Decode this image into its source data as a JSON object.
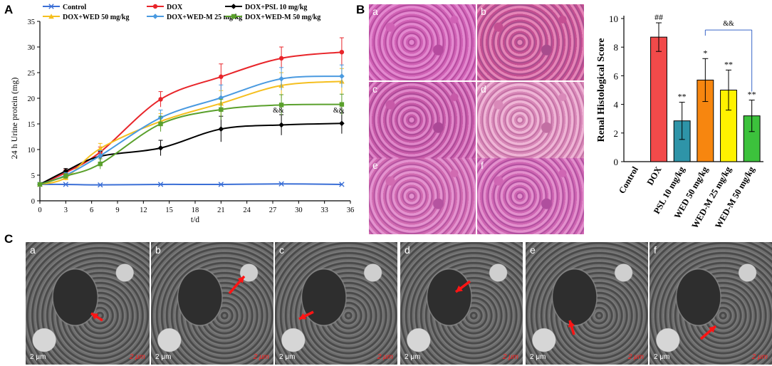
{
  "panels": {
    "a": "A",
    "b": "B",
    "c": "C"
  },
  "chart_data": [
    {
      "type": "line",
      "xlabel": "t/d",
      "ylabel": "24 h Urine protein (mg)",
      "xlim": [
        0,
        36
      ],
      "ylim": [
        0,
        35
      ],
      "xticks": [
        0,
        3,
        6,
        9,
        12,
        15,
        18,
        21,
        24,
        27,
        30,
        33,
        36
      ],
      "yticks": [
        0,
        5,
        10,
        15,
        20,
        25,
        30,
        35
      ],
      "legend_position": "top",
      "x": [
        0,
        3,
        7,
        14,
        21,
        28,
        35
      ],
      "series": [
        {
          "name": "Control",
          "color": "#3b6fd6",
          "marker": "x",
          "values": [
            3.2,
            3.2,
            3.1,
            3.2,
            3.2,
            3.3,
            3.2
          ],
          "errors": [
            0.1,
            0.1,
            0.1,
            0.1,
            0.1,
            0.1,
            0.1
          ]
        },
        {
          "name": "DOX",
          "color": "#e8252a",
          "marker": "circle",
          "values": [
            3.2,
            5.5,
            9.5,
            19.8,
            24.2,
            27.8,
            29.0
          ],
          "errors": [
            0.2,
            0.6,
            1.0,
            1.5,
            2.5,
            2.2,
            2.8
          ]
        },
        {
          "name": "DOX+PSL 10 mg/kg",
          "color": "#000000",
          "marker": "diamond",
          "values": [
            3.2,
            5.8,
            8.7,
            10.3,
            14.0,
            14.8,
            15.1
          ],
          "errors": [
            0.2,
            0.5,
            1.0,
            1.5,
            2.5,
            2.0,
            2.0
          ]
        },
        {
          "name": "DOX+WED 50 mg/kg",
          "color": "#f5bf1f",
          "marker": "triangle",
          "values": [
            3.2,
            4.5,
            10.2,
            15.5,
            19.0,
            22.5,
            23.3
          ],
          "errors": [
            0.2,
            0.5,
            1.0,
            1.5,
            2.5,
            2.5,
            2.5
          ]
        },
        {
          "name": "DOX+WED-M 25 mg/kg",
          "color": "#4a9ae0",
          "marker": "diamond",
          "values": [
            3.2,
            5.0,
            8.8,
            16.2,
            20.1,
            23.8,
            24.3
          ],
          "errors": [
            0.2,
            0.5,
            1.0,
            1.5,
            2.5,
            2.2,
            2.2
          ]
        },
        {
          "name": "DOX+WED-M 50 mg/kg",
          "color": "#5aa02c",
          "marker": "square",
          "values": [
            3.2,
            4.8,
            7.2,
            15.0,
            17.8,
            18.7,
            18.8
          ],
          "errors": [
            0.2,
            0.5,
            1.0,
            1.5,
            2.0,
            2.0,
            2.0
          ]
        }
      ],
      "annotations": [
        {
          "x": 28,
          "y": 17.5,
          "text": "&&"
        },
        {
          "x": 35,
          "y": 17.5,
          "text": "&&"
        }
      ]
    },
    {
      "type": "bar",
      "ylabel": "Renal Histological Score",
      "ylim": [
        0,
        10
      ],
      "yticks": [
        0,
        2,
        4,
        6,
        8,
        10
      ],
      "categories": [
        "Control",
        "DOX",
        "PSL 10 mg/kg",
        "WED 50 mg/kg",
        "WED-M 25 mg/kg",
        "WED-M 50 mg/kg"
      ],
      "values": [
        0,
        8.7,
        2.85,
        5.7,
        5.0,
        3.2
      ],
      "errors": [
        0,
        1.0,
        1.3,
        1.5,
        1.4,
        1.1
      ],
      "colors": [
        "#ffffff",
        "#f24a4a",
        "#2e94a8",
        "#f7860f",
        "#fff200",
        "#3cc23c"
      ],
      "labels": [
        "",
        "##",
        "**",
        "*",
        "**",
        "**"
      ],
      "bracket": {
        "from": "WED 50 mg/kg",
        "to": "WED-M 50 mg/kg",
        "text": "&&"
      }
    }
  ],
  "histology": [
    "a",
    "b",
    "c",
    "d",
    "e",
    "f"
  ],
  "em": [
    {
      "sub": "a",
      "scale_left": "2 μm",
      "scale_right": "2 μm"
    },
    {
      "sub": "b",
      "scale_left": "2 μm",
      "scale_right": "2 μm"
    },
    {
      "sub": "c",
      "scale_left": "2 μm",
      "scale_right": "2 μm"
    },
    {
      "sub": "d",
      "scale_left": "2 μm",
      "scale_right": "2 μm"
    },
    {
      "sub": "e",
      "scale_left": "2 μm",
      "scale_right": "2 μm"
    },
    {
      "sub": "f",
      "scale_left": "2 μm",
      "scale_right": "2 μm"
    }
  ]
}
